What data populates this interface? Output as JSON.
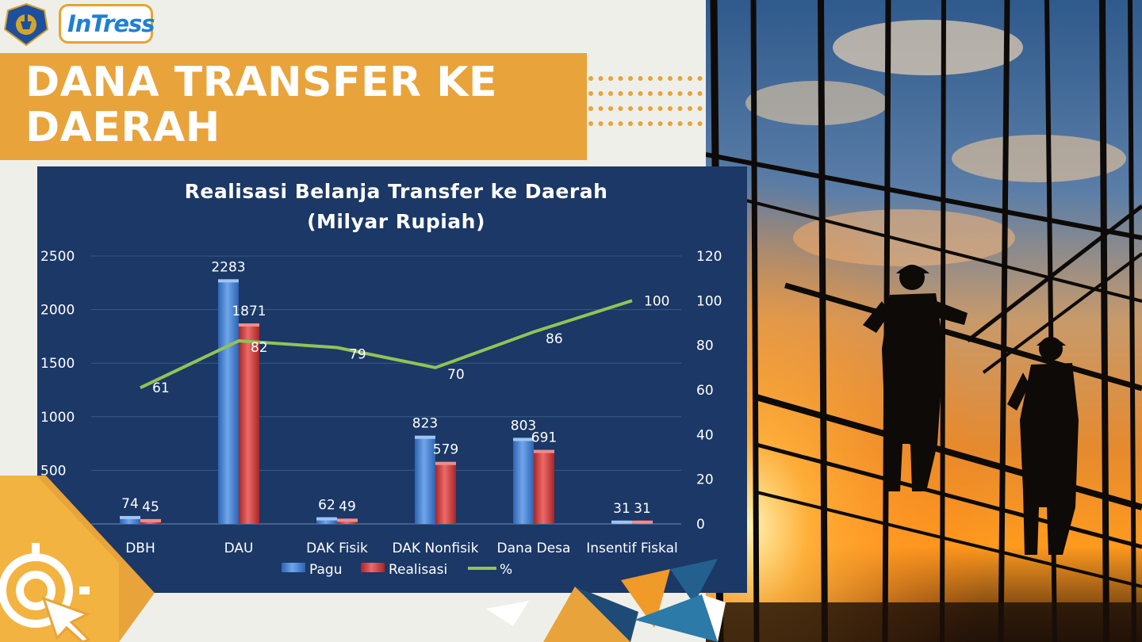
{
  "logo": {
    "name": "InTress",
    "emblem": "ministry-emblem"
  },
  "banner": {
    "title": "DANA TRANSFER KE DAERAH"
  },
  "colors": {
    "accent": "#e8a33a",
    "chart_bg": "#1b3866",
    "pagu": "#4a86d4",
    "realisasi": "#d24343",
    "percent": "#92c356"
  },
  "chart_data": {
    "type": "bar",
    "title_line1": "Realisasi Belanja Transfer ke Daerah",
    "title_line2": "(Milyar Rupiah)",
    "categories": [
      "DBH",
      "DAU",
      "DAK Fisik",
      "DAK Nonfisik",
      "Dana Desa",
      "Insentif Fiskal"
    ],
    "series": [
      {
        "name": "Pagu",
        "values": [
          74,
          2283,
          62,
          823,
          803,
          31
        ],
        "axis": "left",
        "kind": "bar"
      },
      {
        "name": "Realisasi",
        "values": [
          45,
          1871,
          49,
          579,
          691,
          31
        ],
        "axis": "left",
        "kind": "bar"
      },
      {
        "name": "%",
        "values": [
          61,
          82,
          79,
          70,
          86,
          100
        ],
        "axis": "right",
        "kind": "line"
      }
    ],
    "ylim_left": [
      0,
      2500
    ],
    "yticks_left": [
      500,
      1000,
      1500,
      2000,
      2500
    ],
    "ylim_right": [
      0,
      120
    ],
    "yticks_right": [
      0,
      20,
      40,
      60,
      80,
      100,
      120
    ],
    "grid": true,
    "legend_position": "bottom"
  },
  "photo": {
    "icon": "construction-workers-scaffolding-photo"
  },
  "decor": {
    "icon": "target-cursor-icon"
  }
}
